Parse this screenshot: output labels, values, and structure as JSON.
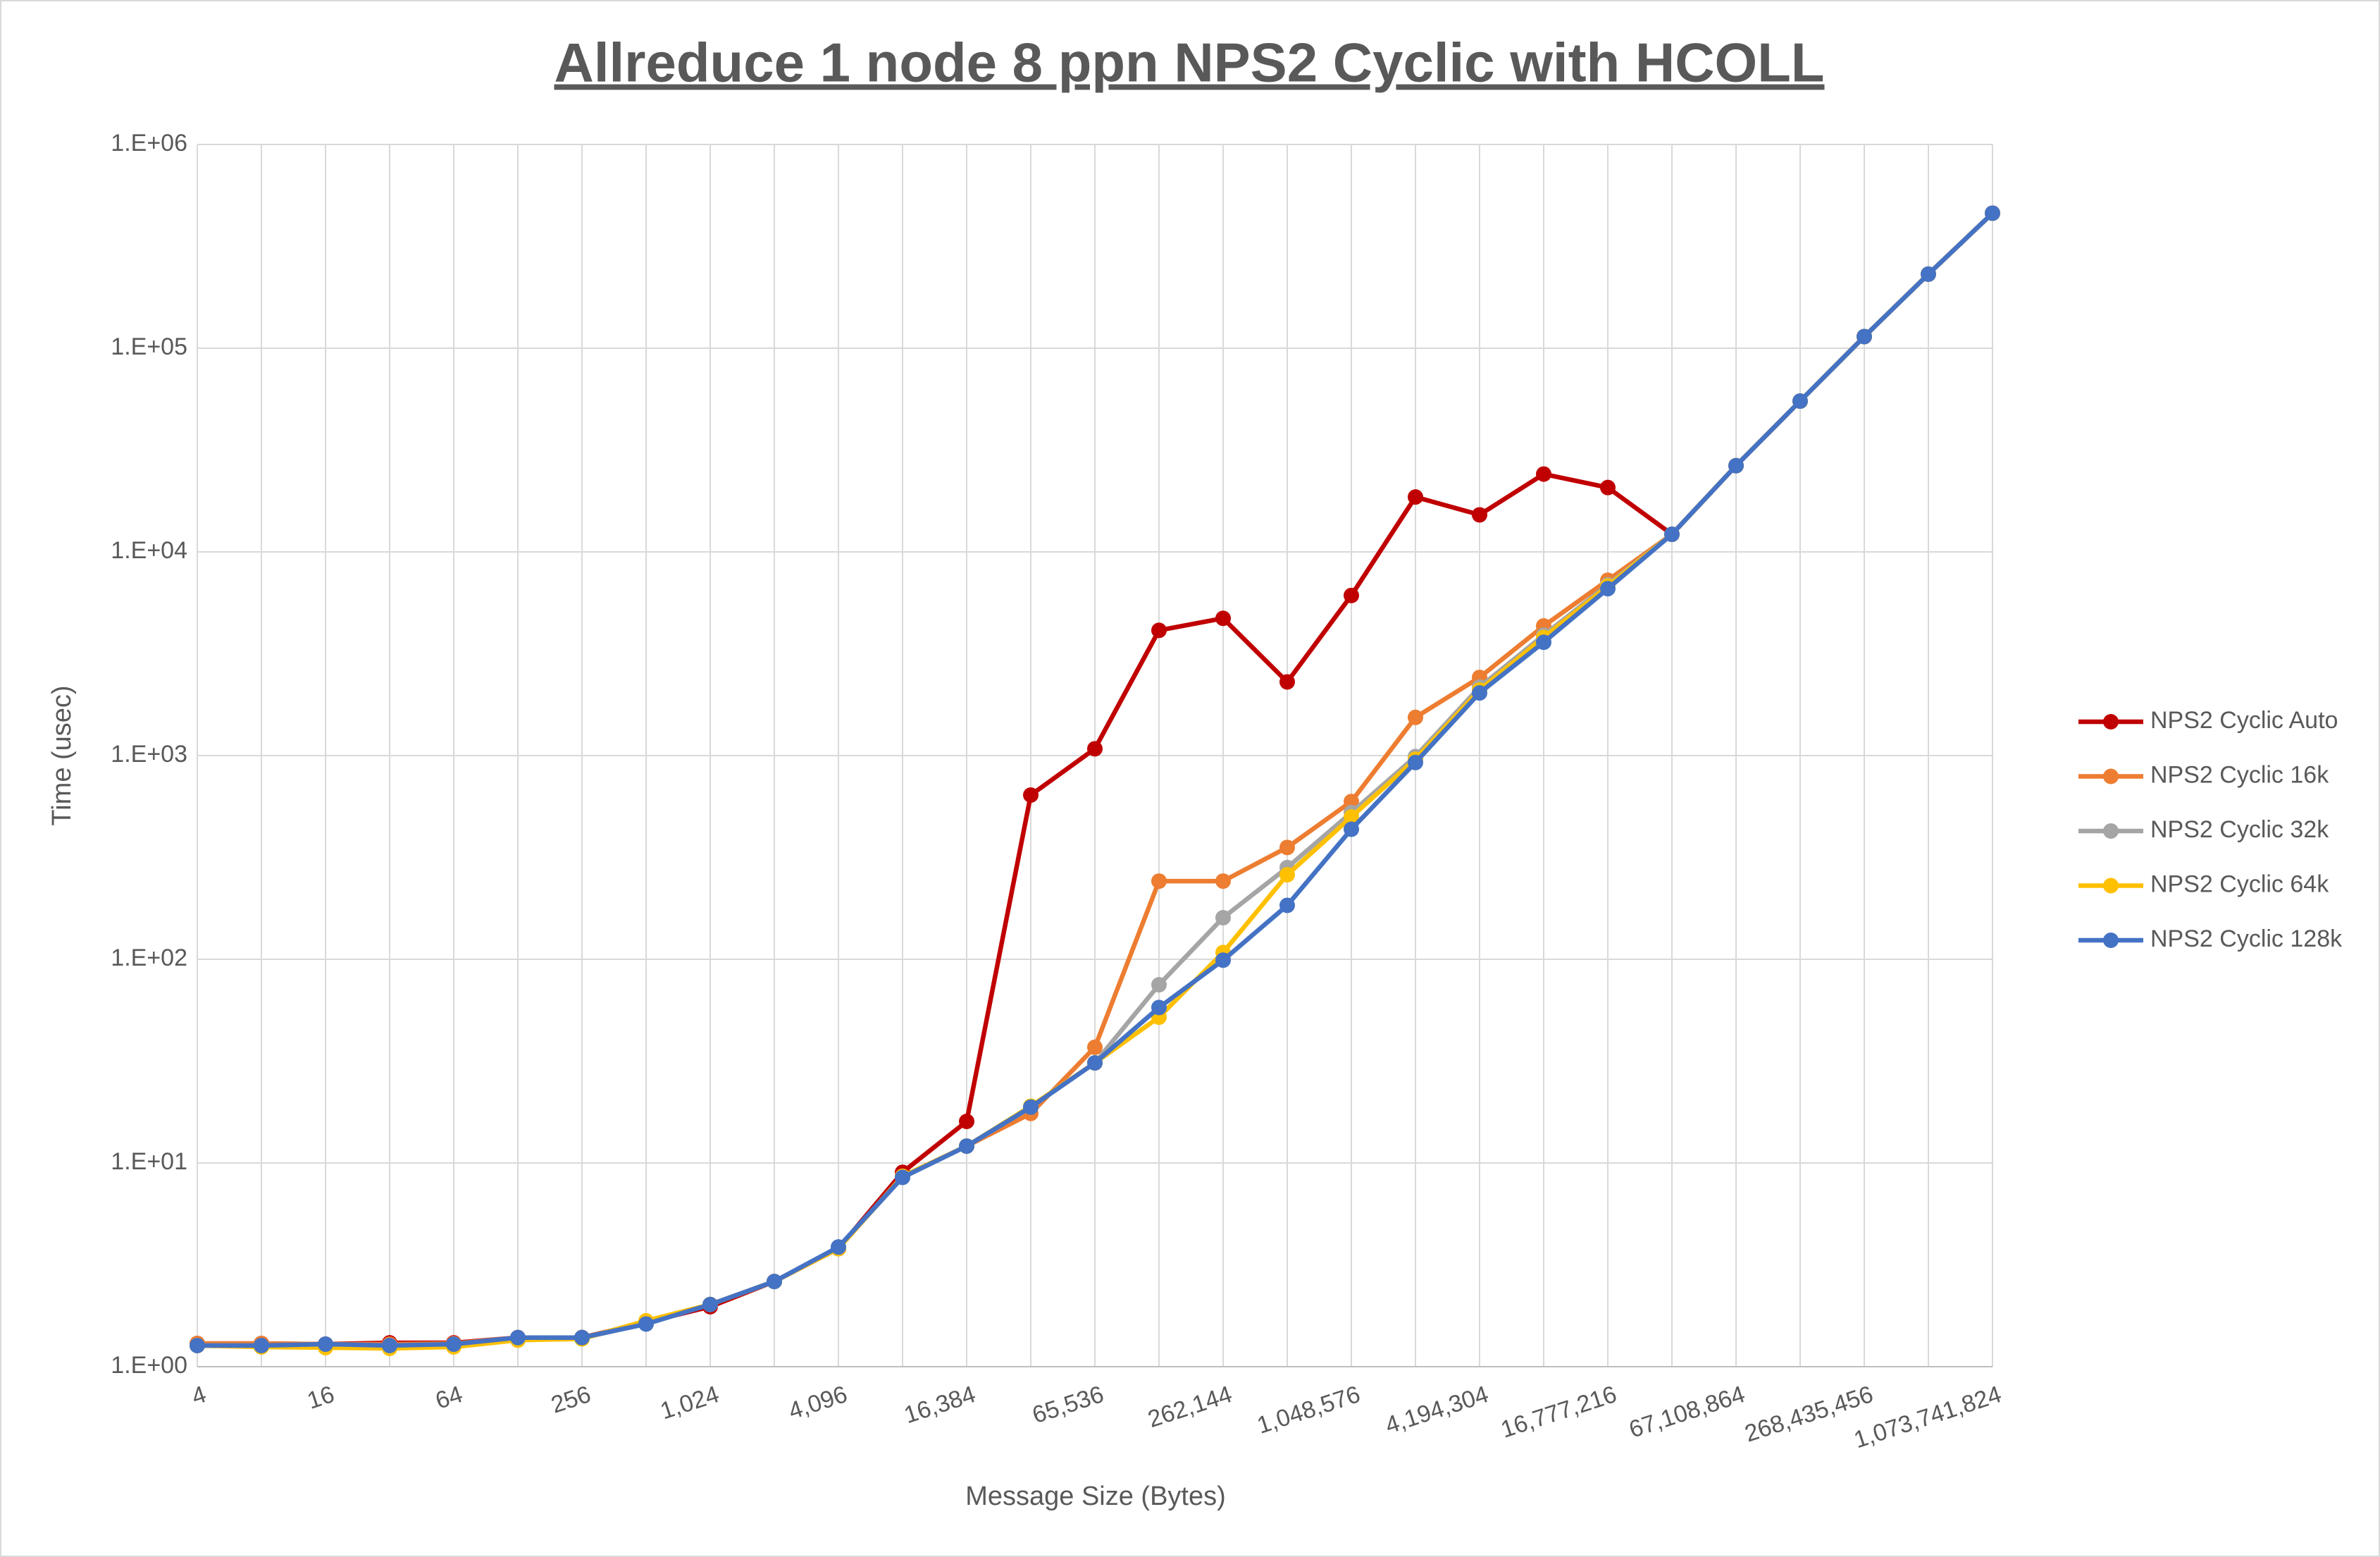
{
  "chart_data": {
    "type": "line",
    "title": "Allreduce 1 node 8 ppn NPS2 Cyclic with HCOLL",
    "x_label": "Message Size (Bytes)",
    "y_label": "Time (usec)",
    "log_y": true,
    "grid": true,
    "legend": "right",
    "categories": [
      "4",
      null,
      "16",
      null,
      "64",
      null,
      "256",
      null,
      "1,024",
      null,
      "4,096",
      null,
      "16,384",
      null,
      "65,536",
      null,
      "262,144",
      null,
      "1,048,576",
      null,
      "4,194,304",
      null,
      "16,777,216",
      null,
      "67,108,864",
      null,
      "268,435,456",
      null,
      "1,073,741,824"
    ],
    "ylim": [
      1,
      1000000
    ],
    "yticks": [
      {
        "value": 1,
        "label": "1.E+00"
      },
      {
        "value": 10,
        "label": "1.E+01"
      },
      {
        "value": 100,
        "label": "1.E+02"
      },
      {
        "value": 1000,
        "label": "1.E+03"
      },
      {
        "value": 10000,
        "label": "1.E+04"
      },
      {
        "value": 100000,
        "label": "1.E+05"
      },
      {
        "value": 1000000,
        "label": "1.E+06"
      }
    ],
    "series": [
      {
        "name": "NPS2 Cyclic Auto",
        "color": "#c00000",
        "values": [
          1.3,
          1.3,
          1.29,
          1.31,
          1.31,
          1.39,
          1.39,
          1.65,
          1.97,
          2.62,
          3.8,
          9.0,
          16,
          640,
          1080,
          4120,
          4720,
          2300,
          6110,
          18600,
          15200,
          24100,
          20700,
          12200,
          26500,
          55000,
          114000,
          231000,
          460000
        ]
      },
      {
        "name": "NPS2 Cyclic 16k",
        "color": "#ed7d31",
        "values": [
          1.3,
          1.3,
          1.29,
          1.29,
          1.3,
          1.39,
          1.39,
          1.65,
          2.02,
          2.62,
          3.8,
          8.6,
          12.1,
          17.5,
          37,
          242,
          242,
          354,
          595,
          1540,
          2420,
          4330,
          7260,
          12200,
          26500,
          55000,
          114000,
          231000,
          460000
        ]
      },
      {
        "name": "NPS2 Cyclic 32k",
        "color": "#a5a5a5",
        "values": [
          1.27,
          1.27,
          1.28,
          1.27,
          1.28,
          1.38,
          1.38,
          1.63,
          2.02,
          2.62,
          3.85,
          8.5,
          12.1,
          18.8,
          31,
          75,
          160,
          282,
          525,
          990,
          2170,
          3900,
          6900,
          12200,
          26500,
          55000,
          114000,
          231000,
          460000
        ]
      },
      {
        "name": "NPS2 Cyclic 64k",
        "color": "#ffc000",
        "values": [
          1.27,
          1.25,
          1.24,
          1.23,
          1.25,
          1.35,
          1.37,
          1.68,
          2.02,
          2.62,
          3.8,
          8.6,
          12.1,
          19,
          31,
          52,
          108,
          260,
          500,
          960,
          2100,
          3800,
          6800,
          12200,
          26500,
          55000,
          114000,
          231000,
          460000
        ]
      },
      {
        "name": "NPS2 Cyclic 128k",
        "color": "#4472c4",
        "values": [
          1.27,
          1.27,
          1.29,
          1.27,
          1.29,
          1.39,
          1.39,
          1.62,
          2.02,
          2.62,
          3.87,
          8.5,
          12.1,
          18.8,
          31,
          58,
          99,
          184,
          435,
          925,
          2030,
          3600,
          6600,
          12200,
          26500,
          55000,
          114000,
          231000,
          460000
        ]
      }
    ]
  }
}
